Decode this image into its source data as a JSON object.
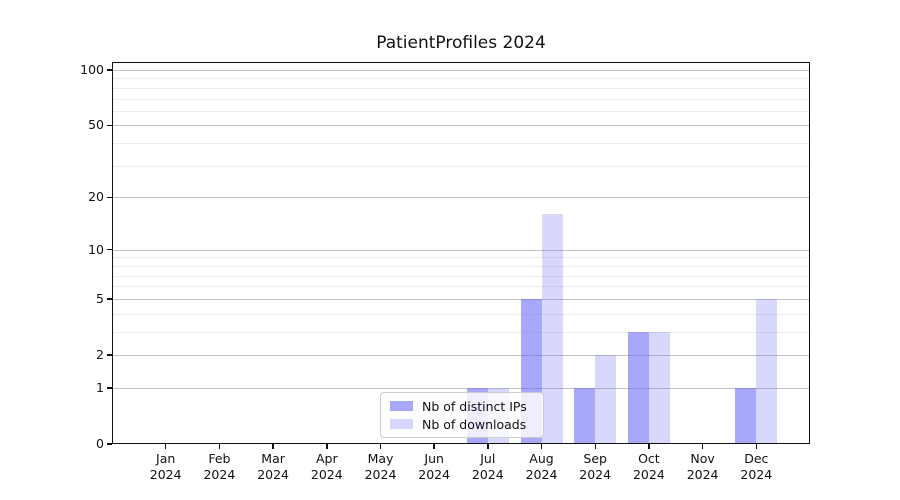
{
  "title": "PatientProfiles 2024",
  "chart_data": {
    "type": "bar",
    "title": "PatientProfiles 2024",
    "categories": [
      "Jan",
      "Feb",
      "Mar",
      "Apr",
      "May",
      "Jun",
      "Jul",
      "Aug",
      "Sep",
      "Oct",
      "Nov",
      "Dec"
    ],
    "x_year": "2024",
    "series": [
      {
        "name": "Nb of distinct IPs",
        "color": "rgba(100,100,247,0.56)",
        "values": [
          0,
          0,
          0,
          0,
          0,
          0,
          1,
          5,
          1,
          3,
          0,
          1
        ]
      },
      {
        "name": "Nb of downloads",
        "color": "rgba(100,100,247,0.25)",
        "values": [
          0,
          0,
          0,
          0,
          0,
          0,
          1,
          16,
          2,
          3,
          0,
          5
        ]
      }
    ],
    "yscale": "log1p",
    "ylim": [
      0,
      110
    ],
    "y_major_ticks": [
      0,
      1,
      2,
      5,
      10,
      20,
      50,
      100
    ],
    "y_minor_gridlines": [
      3,
      4,
      6,
      7,
      8,
      9,
      30,
      40,
      60,
      70,
      80,
      90
    ],
    "xlabel": "",
    "ylabel": "",
    "grid": true,
    "legend_position": "lower center"
  },
  "colors": {
    "bar_distinct_ips": "rgba(100,100,247,0.56)",
    "bar_downloads": "rgba(100,100,247,0.25)",
    "grid_major": "#c3c3c3",
    "grid_minor": "#ececec",
    "spine": "#111111",
    "legend_border": "#cccccc"
  }
}
